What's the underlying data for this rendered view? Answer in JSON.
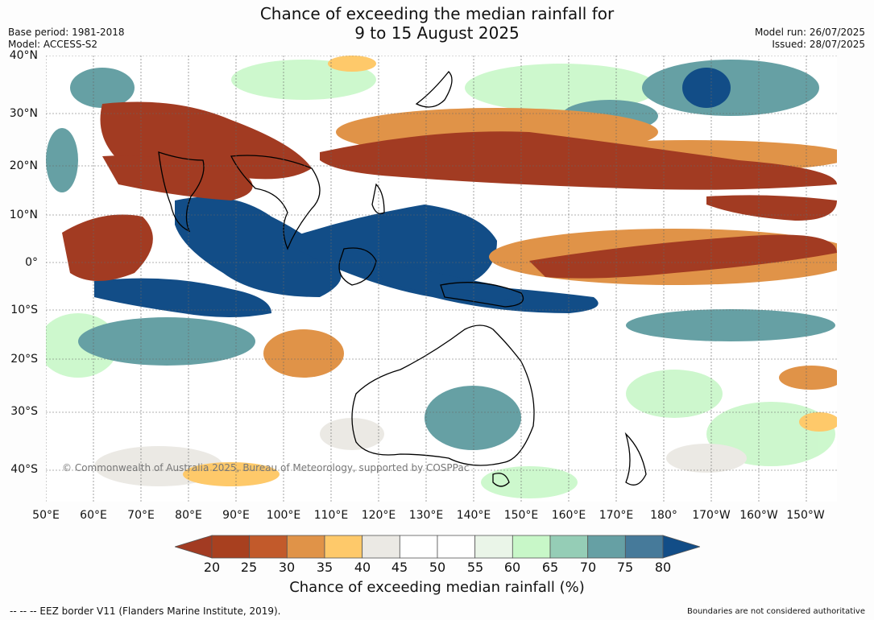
{
  "title": {
    "line1": "Chance of exceeding the median rainfall for",
    "line2": "9 to 15 August 2025"
  },
  "meta": {
    "base_period": "Base period: 1981-2018",
    "model": "Model: ACCESS-S2",
    "model_run": "Model run: 26/07/2025",
    "issued": "Issued: 28/07/2025"
  },
  "map": {
    "lat_labels": [
      "40°N",
      "30°N",
      "20°N",
      "10°N",
      "0°",
      "10°S",
      "20°S",
      "30°S",
      "40°S"
    ],
    "lon_labels": [
      "50°E",
      "60°E",
      "70°E",
      "80°E",
      "90°E",
      "100°E",
      "110°E",
      "120°E",
      "130°E",
      "140°E",
      "150°E",
      "160°E",
      "170°E",
      "180°",
      "170°W",
      "160°W",
      "150°W"
    ],
    "copyright": "© Commonwealth of Australia 2025, Bureau of Meteorology, supported by COSPPac"
  },
  "legend": {
    "ticks": [
      "20",
      "25",
      "30",
      "35",
      "40",
      "45",
      "50",
      "55",
      "60",
      "65",
      "70",
      "75",
      "80"
    ],
    "colors": [
      "#a23b22",
      "#a8401f",
      "#c25a2b",
      "#e09348",
      "#fec96a",
      "#ebe9e4",
      "#ffffff",
      "#ffffff",
      "#eaf5e8",
      "#c8f7c8",
      "#95cdb6",
      "#66a0a4",
      "#467a9a",
      "#124d87"
    ],
    "title": "Chance of exceeding median rainfall (%)"
  },
  "footer": {
    "eez_note": "--  --  -- EEZ border V11 (Flanders Marine Institute, 2019).",
    "boundaries_note": "Boundaries are not considered authoritative"
  }
}
